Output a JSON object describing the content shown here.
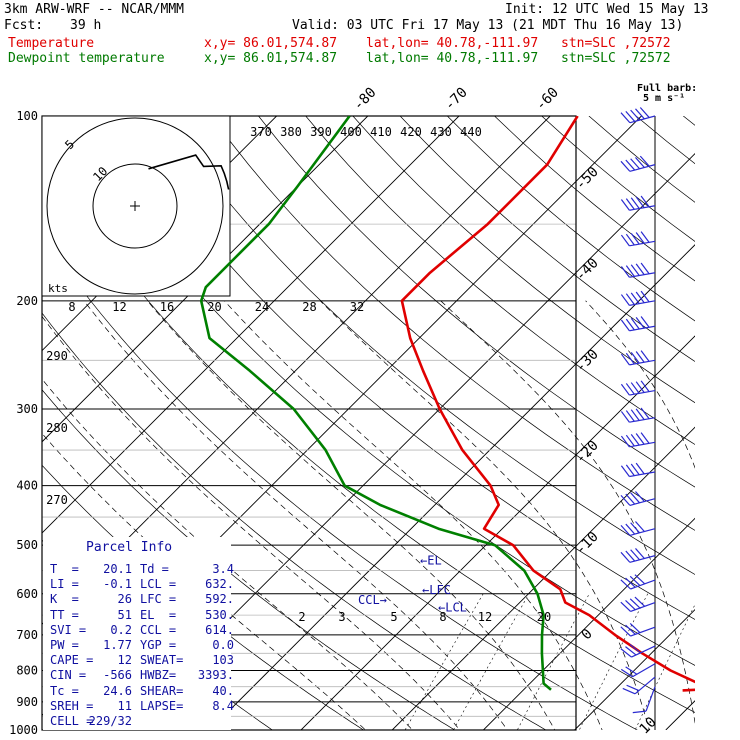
{
  "header": {
    "model": "3km ARW-WRF -- NCAR/MMM",
    "init": "Init: 12 UTC Wed 15 May 13",
    "fcst_label": "Fcst:",
    "fcst_value": "39 h",
    "valid": "Valid: 03 UTC Fri 17 May 13 (21 MDT Thu 16 May 13)",
    "temperature_label": "Temperature",
    "dewpoint_label": "Dewpoint temperature",
    "xy": "x,y= 86.01,574.87",
    "latlon": "lat,lon= 40.78,-111.97",
    "stn": "stn=SLC ,72572"
  },
  "colors": {
    "temperature": "#e00000",
    "dewpoint": "#008000",
    "text_blue": "#1010a0",
    "barb": "#2a2ad0"
  },
  "barb_legend": {
    "title": "Full barb:",
    "value": "5 m s⁻¹"
  },
  "hodograph": {
    "unit_label": "kts",
    "ring_labels": [
      "5",
      "10"
    ]
  },
  "chart_data": {
    "type": "skew-t",
    "pressure_levels": [
      100,
      200,
      300,
      400,
      500,
      600,
      700,
      800,
      900,
      1000
    ],
    "pressure_tick_labels": [
      "100",
      "200",
      "300",
      "400",
      "500",
      "600",
      "700",
      "800",
      "900",
      "1000"
    ],
    "temperature_tick_labels": [
      "-80",
      "-70",
      "-60",
      "-50",
      "-40",
      "-30",
      "-20",
      "-10",
      "0",
      "10",
      "20",
      "30",
      "40"
    ],
    "theta_labels_top": [
      "370",
      "380",
      "390",
      "400",
      "410",
      "420",
      "430",
      "440"
    ],
    "theta_labels_left": [
      "290",
      "280",
      "270"
    ],
    "theta_e_labels": [
      "8",
      "12",
      "16",
      "20",
      "24",
      "28",
      "32"
    ],
    "mixing_ratio_labels": [
      "2",
      "3",
      "5",
      "8",
      "12",
      "20"
    ],
    "temperature": [
      {
        "p": 100,
        "t": -57
      },
      {
        "p": 120,
        "t": -55
      },
      {
        "p": 150,
        "t": -55
      },
      {
        "p": 180,
        "t": -56
      },
      {
        "p": 200,
        "t": -56
      },
      {
        "p": 230,
        "t": -51
      },
      {
        "p": 260,
        "t": -46
      },
      {
        "p": 300,
        "t": -40
      },
      {
        "p": 350,
        "t": -33
      },
      {
        "p": 400,
        "t": -26
      },
      {
        "p": 430,
        "t": -23
      },
      {
        "p": 470,
        "t": -22
      },
      {
        "p": 500,
        "t": -17
      },
      {
        "p": 550,
        "t": -12
      },
      {
        "p": 590,
        "t": -7
      },
      {
        "p": 620,
        "t": -5
      },
      {
        "p": 650,
        "t": -1
      },
      {
        "p": 700,
        "t": 4
      },
      {
        "p": 750,
        "t": 9
      },
      {
        "p": 800,
        "t": 14
      },
      {
        "p": 840,
        "t": 18.5
      },
      {
        "p": 850,
        "t": 20
      },
      {
        "p": 858,
        "t": 20.1
      },
      {
        "p": 862,
        "t": 17.5
      }
    ],
    "dewpoint": [
      {
        "p": 100,
        "t": -82
      },
      {
        "p": 130,
        "t": -80
      },
      {
        "p": 150,
        "t": -79
      },
      {
        "p": 170,
        "t": -79
      },
      {
        "p": 190,
        "t": -79
      },
      {
        "p": 200,
        "t": -78
      },
      {
        "p": 230,
        "t": -73
      },
      {
        "p": 260,
        "t": -65
      },
      {
        "p": 300,
        "t": -56
      },
      {
        "p": 350,
        "t": -48
      },
      {
        "p": 400,
        "t": -42
      },
      {
        "p": 430,
        "t": -36
      },
      {
        "p": 470,
        "t": -27
      },
      {
        "p": 500,
        "t": -19
      },
      {
        "p": 550,
        "t": -13
      },
      {
        "p": 600,
        "t": -9
      },
      {
        "p": 650,
        "t": -6
      },
      {
        "p": 700,
        "t": -4
      },
      {
        "p": 750,
        "t": -2
      },
      {
        "p": 800,
        "t": 0
      },
      {
        "p": 840,
        "t": 1.5
      },
      {
        "p": 860,
        "t": 3.0
      }
    ],
    "level_markers": [
      {
        "label": "←EL",
        "p": 530
      },
      {
        "label": "←LFC",
        "p": 592
      },
      {
        "label": "←LCL",
        "p": 632
      },
      {
        "label": "CCL→",
        "p": 614
      }
    ],
    "wind_barbs": [
      {
        "p": 100,
        "dir": 255,
        "speed_ms": 25
      },
      {
        "p": 120,
        "dir": 255,
        "speed_ms": 25
      },
      {
        "p": 140,
        "dir": 260,
        "speed_ms": 25
      },
      {
        "p": 160,
        "dir": 260,
        "speed_ms": 25
      },
      {
        "p": 180,
        "dir": 260,
        "speed_ms": 25
      },
      {
        "p": 200,
        "dir": 260,
        "speed_ms": 25
      },
      {
        "p": 220,
        "dir": 260,
        "speed_ms": 25
      },
      {
        "p": 250,
        "dir": 260,
        "speed_ms": 25
      },
      {
        "p": 280,
        "dir": 260,
        "speed_ms": 25
      },
      {
        "p": 310,
        "dir": 260,
        "speed_ms": 25
      },
      {
        "p": 340,
        "dir": 260,
        "speed_ms": 25
      },
      {
        "p": 380,
        "dir": 260,
        "speed_ms": 20
      },
      {
        "p": 420,
        "dir": 255,
        "speed_ms": 20
      },
      {
        "p": 470,
        "dir": 255,
        "speed_ms": 20
      },
      {
        "p": 520,
        "dir": 255,
        "speed_ms": 20
      },
      {
        "p": 570,
        "dir": 250,
        "speed_ms": 20
      },
      {
        "p": 620,
        "dir": 250,
        "speed_ms": 20
      },
      {
        "p": 680,
        "dir": 250,
        "speed_ms": 15
      },
      {
        "p": 730,
        "dir": 245,
        "speed_ms": 15
      },
      {
        "p": 780,
        "dir": 240,
        "speed_ms": 10
      },
      {
        "p": 820,
        "dir": 230,
        "speed_ms": 10
      },
      {
        "p": 850,
        "dir": 200,
        "speed_ms": 5
      }
    ]
  },
  "parcel_info": {
    "title": "Parcel Info",
    "rows": [
      {
        "k1": "T  =",
        "v1": "20.1",
        "k2": "Td =",
        "v2": "3.4"
      },
      {
        "k1": "LI =",
        "v1": "-0.1",
        "k2": "LCL =",
        "v2": "632."
      },
      {
        "k1": "K  =",
        "v1": "26",
        "k2": "LFC =",
        "v2": "592."
      },
      {
        "k1": "TT =",
        "v1": "51",
        "k2": "EL  =",
        "v2": "530."
      },
      {
        "k1": "SVI =",
        "v1": "0.2",
        "k2": "CCL =",
        "v2": "614."
      },
      {
        "k1": "PW =",
        "v1": "1.77",
        "k2": "YGP =",
        "v2": "0.0"
      },
      {
        "k1": "CAPE =",
        "v1": "12",
        "k2": "SWEAT=",
        "v2": "103"
      },
      {
        "k1": "CIN =",
        "v1": "-566",
        "k2": "HWBZ=",
        "v2": "3393."
      },
      {
        "k1": "Tc =",
        "v1": "24.6",
        "k2": "SHEAR=",
        "v2": "40."
      },
      {
        "k1": "SREH =",
        "v1": "11",
        "k2": "LAPSE=",
        "v2": "8.4"
      },
      {
        "k1": "CELL =",
        "v1": "229/32",
        "k2": "",
        "v2": ""
      }
    ]
  }
}
